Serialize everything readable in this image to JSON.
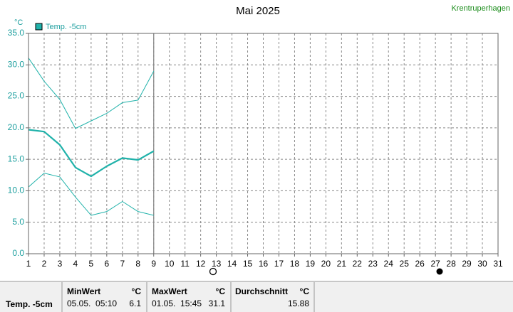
{
  "chart_data": {
    "type": "line",
    "title": "Mai 2025",
    "station": "Krentruperhagen",
    "y_unit": "°C",
    "x": [
      1,
      2,
      3,
      4,
      5,
      6,
      7,
      8,
      9
    ],
    "series": [
      {
        "name": "Temp. -5cm",
        "color": "#20b2aa",
        "line_width": 2.2,
        "values": [
          19.7,
          19.4,
          17.3,
          13.7,
          12.3,
          13.9,
          15.2,
          14.9,
          16.3
        ]
      },
      {
        "color": "#20b2aa",
        "line_width": 1,
        "values": [
          31.1,
          27.4,
          24.5,
          19.9,
          21.1,
          22.3,
          24.0,
          24.4,
          29.0
        ]
      },
      {
        "color": "#20b2aa",
        "line_width": 1,
        "values": [
          10.6,
          12.8,
          12.2,
          9.0,
          6.1,
          6.7,
          8.3,
          6.7,
          6.1
        ]
      }
    ],
    "xlim": [
      1,
      31
    ],
    "xticks": [
      1,
      2,
      3,
      4,
      5,
      6,
      7,
      8,
      9,
      10,
      11,
      12,
      13,
      14,
      15,
      16,
      17,
      18,
      19,
      20,
      21,
      22,
      23,
      24,
      25,
      26,
      27,
      28,
      29,
      30,
      31
    ],
    "ylim": [
      0,
      35
    ],
    "yticks": [
      {
        "value": 0,
        "label": "0.0"
      },
      {
        "value": 5,
        "label": "5.0"
      },
      {
        "value": 10,
        "label": "10.0"
      },
      {
        "value": 15,
        "label": "15.0"
      },
      {
        "value": 20,
        "label": "20.0"
      },
      {
        "value": 25,
        "label": "25.0"
      },
      {
        "value": 30,
        "label": "30.0"
      },
      {
        "value": 35,
        "label": "35.0"
      }
    ],
    "grid": true,
    "today": 9
  },
  "table": {
    "row_label": "Temp. -5cm",
    "columns": [
      {
        "header": "MinWert",
        "unit": "°C",
        "time": "05.05.  05:10",
        "value": 6.1
      },
      {
        "header": "MaxWert",
        "unit": "°C",
        "time": "01.05.  15:45",
        "value": 31.1
      },
      {
        "header": "Durchschnitt",
        "unit": "°C",
        "value": 15.88
      }
    ]
  }
}
